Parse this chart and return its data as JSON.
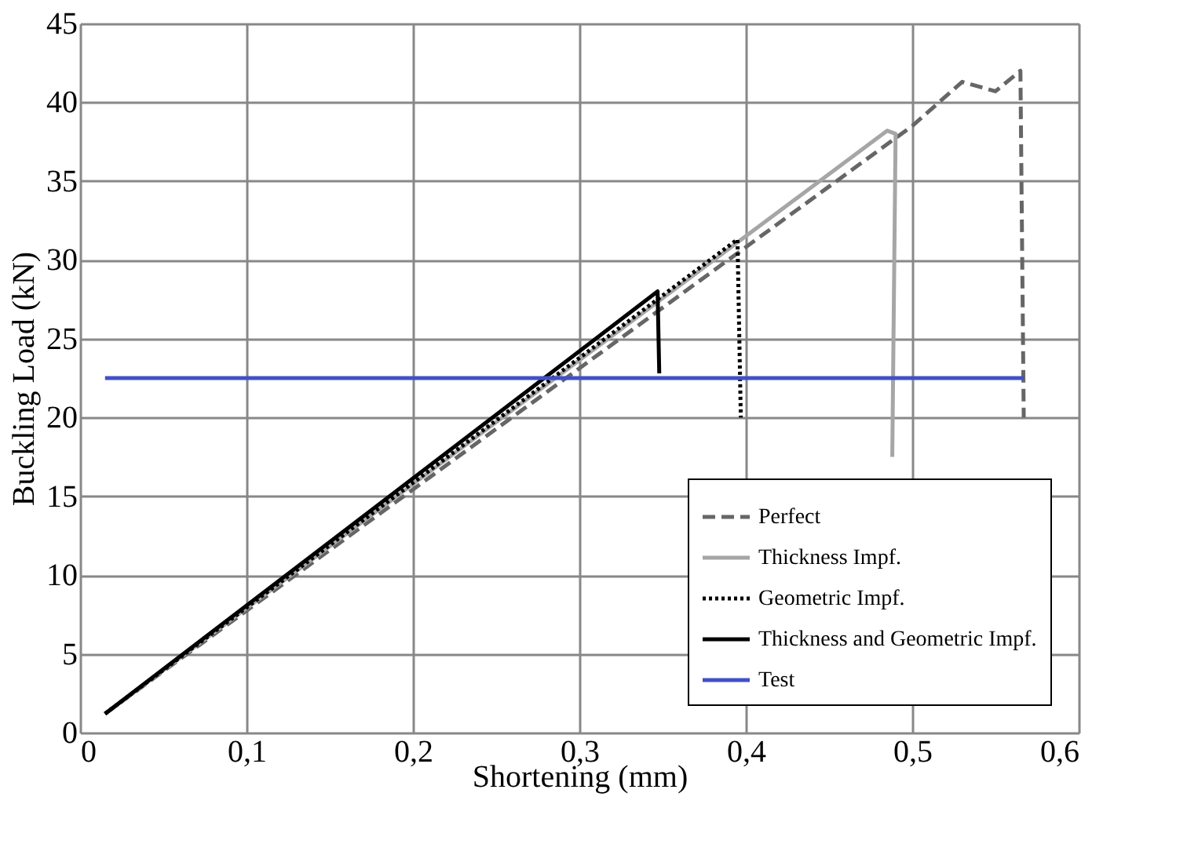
{
  "chart_data": {
    "type": "line",
    "xlabel": "Shortening (mm)",
    "ylabel": "Buckling Load (kN)",
    "xlim": [
      0,
      0.6
    ],
    "ylim": [
      0,
      45
    ],
    "xticks": [
      0,
      {
        "value": 0.1,
        "label": "0,1"
      },
      {
        "value": 0.2,
        "label": "0,2"
      },
      {
        "value": 0.3,
        "label": "0,3"
      },
      {
        "value": 0.4,
        "label": "0,4"
      },
      {
        "value": 0.5,
        "label": "0,5"
      },
      {
        "value": 0.6,
        "label": "0,6"
      }
    ],
    "yticks": [
      0,
      5,
      10,
      15,
      20,
      25,
      30,
      35,
      40,
      45
    ],
    "grid": true,
    "legend": "bottom right",
    "marker": "none",
    "series": [
      {
        "name": "Perfect",
        "color": "#666666",
        "line_style": "dashed",
        "x": [
          0.015,
          0.5,
          0.53,
          0.55,
          0.565,
          0.567
        ],
        "values": [
          1.2,
          38.5,
          41.3,
          40.7,
          42,
          20
        ]
      },
      {
        "name": "Thickness Impf.",
        "color": "#a6a6a6",
        "line_style": "solid",
        "x": [
          0.015,
          0.485,
          0.49,
          0.488
        ],
        "values": [
          1.2,
          38.2,
          38,
          17.5
        ]
      },
      {
        "name": "Geometric Impf.",
        "color": "#000000",
        "line_style": "dotted",
        "x": [
          0.015,
          0.395,
          0.397
        ],
        "values": [
          1.2,
          31.3,
          20
        ]
      },
      {
        "name": "Thickness and Geometric Impf.",
        "color": "#000000",
        "line_style": "solid",
        "x": [
          0.015,
          0.347,
          0.348
        ],
        "values": [
          1.2,
          28,
          22.8
        ]
      },
      {
        "name": "Test",
        "color": "#4050c8",
        "line_style": "solid",
        "x": [
          0.015,
          0.567
        ],
        "values": [
          22.5,
          22.5
        ]
      }
    ]
  }
}
